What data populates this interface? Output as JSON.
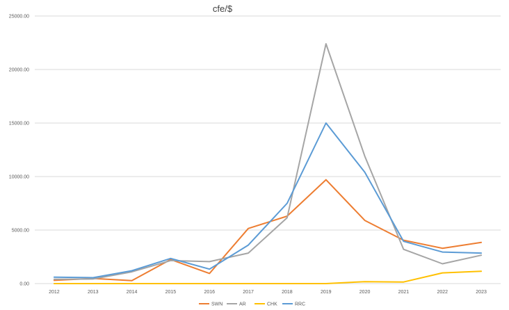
{
  "chart_data": {
    "type": "line",
    "title": "cfe/$",
    "xlabel": "",
    "ylabel": "",
    "categories": [
      "2012",
      "2013",
      "2014",
      "2015",
      "2016",
      "2017",
      "2018",
      "2019",
      "2020",
      "2021",
      "2022",
      "2023"
    ],
    "ylim": [
      0,
      25000
    ],
    "yticks": [
      0,
      5000,
      10000,
      15000,
      20000,
      25000
    ],
    "ytick_labels": [
      "0.00",
      "5000.00",
      "10000.00",
      "15000.00",
      "20000.00",
      "25000.00"
    ],
    "grid": true,
    "legend_position": "bottom",
    "series": [
      {
        "name": "SWN",
        "color": "#ED7D31",
        "values": [
          300,
          480,
          280,
          2250,
          950,
          5150,
          6300,
          9700,
          5900,
          4050,
          3300,
          3850
        ]
      },
      {
        "name": "AR",
        "color": "#A5A5A5",
        "values": [
          400,
          430,
          1100,
          2150,
          2050,
          2850,
          6150,
          22400,
          11900,
          3200,
          1850,
          2650
        ]
      },
      {
        "name": "CHK",
        "color": "#FFC000",
        "values": [
          0,
          0,
          0,
          0,
          0,
          0,
          0,
          0,
          180,
          150,
          1000,
          1150
        ]
      },
      {
        "name": "RRC",
        "color": "#5B9BD5",
        "values": [
          600,
          550,
          1200,
          2350,
          1350,
          3600,
          7500,
          15000,
          10400,
          3950,
          2950,
          2850
        ]
      }
    ]
  }
}
